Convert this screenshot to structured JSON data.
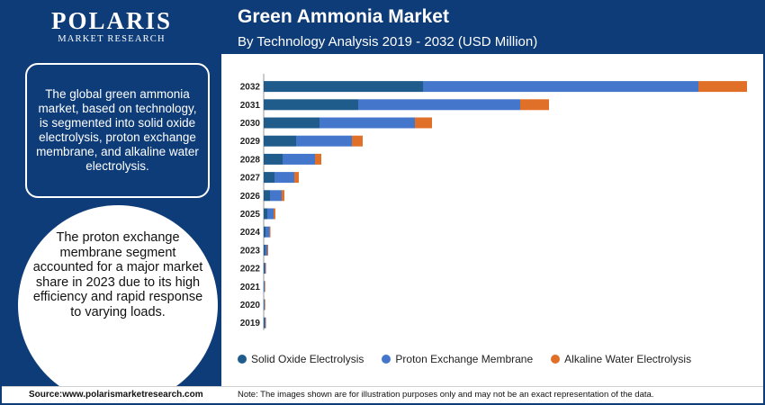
{
  "brand": {
    "name": "POLARIS",
    "tagline": "MARKET RESEARCH"
  },
  "header": {
    "title": "Green Ammonia Market",
    "subtitle": "By Technology Analysis 2019 - 2032 (USD Million)"
  },
  "sidebar": {
    "summary": "The global green ammonia market, based on technology, is segmented into solid oxide electrolysis, proton exchange membrane, and alkaline water electrolysis.",
    "highlight": "The proton exchange membrane segment accounted for a major market share in 2023 due to its high efficiency and rapid response to varying loads."
  },
  "footer": {
    "source": "Source:www.polarismarketresearch.com",
    "note": "Note: The images shown are for illustration purposes only and may not be an exact representation of the data."
  },
  "colors": {
    "navy": "#0d3c78",
    "solid_oxide": "#1f5c8c",
    "pem": "#4477cc",
    "alkaline": "#e07028"
  },
  "chart_data": {
    "type": "bar",
    "orientation": "horizontal",
    "stacked": true,
    "categories": [
      "2032",
      "2031",
      "2030",
      "2029",
      "2028",
      "2027",
      "2026",
      "2025",
      "2024",
      "2023",
      "2022",
      "2021",
      "2020",
      "2019"
    ],
    "series": [
      {
        "name": "Solid Oxide Electrolysis",
        "color": "#1f5c8c",
        "values": [
          177,
          105,
          62,
          36,
          21,
          12,
          7,
          4,
          2,
          1.5,
          1,
          0.5,
          0.3,
          1
        ]
      },
      {
        "name": "Proton Exchange Membrane",
        "color": "#4477cc",
        "values": [
          306,
          180,
          106,
          62,
          36,
          22,
          13,
          7,
          4.5,
          2.5,
          1,
          0.5,
          0.4,
          1
        ]
      },
      {
        "name": "Alkaline Water Electrolysis",
        "color": "#e07028",
        "values": [
          54,
          32,
          19,
          12,
          7,
          5,
          3,
          2,
          1,
          1,
          0.5,
          0.3,
          0.2,
          0.5
        ]
      }
    ],
    "grid": false,
    "legend": "bottom"
  }
}
